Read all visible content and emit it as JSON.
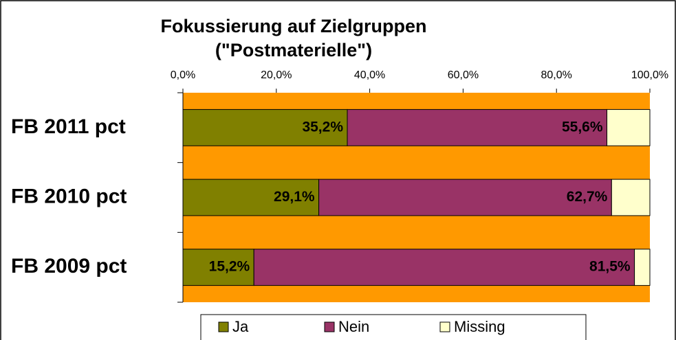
{
  "chart_data": {
    "type": "stacked-barh",
    "title": "Fokussierung auf Zielgruppen",
    "subtitle": "(\"Postmaterielle\")",
    "categories": [
      "FB 2011 pct",
      "FB 2010 pct",
      "FB 2009 pct"
    ],
    "series": [
      {
        "name": "Ja",
        "color": "#808000",
        "values": [
          35.2,
          29.1,
          15.2
        ],
        "value_labels": [
          "35,2%",
          "29,1%",
          "15,2%"
        ]
      },
      {
        "name": "Nein",
        "color": "#993366",
        "values": [
          55.6,
          62.7,
          81.5
        ],
        "value_labels": [
          "55,6%",
          "62,7%",
          "81,5%"
        ]
      },
      {
        "name": "Missing",
        "color": "#FFFFCC",
        "values": [
          9.2,
          8.2,
          3.3
        ]
      }
    ],
    "xlim": [
      0,
      100
    ],
    "xticks": [
      {
        "value": 0,
        "label": "0,0%"
      },
      {
        "value": 20,
        "label": "20,0%"
      },
      {
        "value": 40,
        "label": "40,0%"
      },
      {
        "value": 60,
        "label": "60,0%"
      },
      {
        "value": 80,
        "label": "80,0%"
      },
      {
        "value": 100,
        "label": "100,0%"
      }
    ],
    "plot_background": "#FF9900",
    "legend": "bottom"
  }
}
